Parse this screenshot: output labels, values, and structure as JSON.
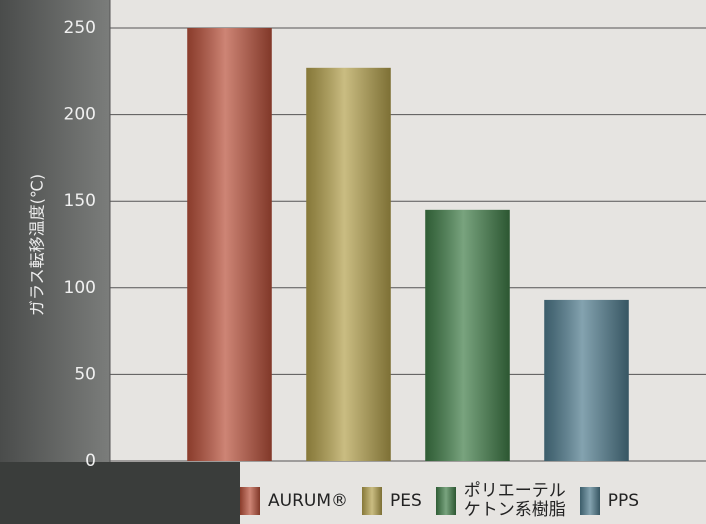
{
  "chart_data": {
    "type": "bar",
    "y_label": "ガラス転移温度(℃)",
    "categories": [
      "AURUM®",
      "PES",
      "ポリエーテル\nケトン系樹脂",
      "PPS"
    ],
    "values": [
      250,
      227,
      145,
      93
    ],
    "colors": [
      "#b8503a",
      "#b3a04c",
      "#3f7c47",
      "#4f7b8d"
    ],
    "ylim": [
      0,
      250
    ],
    "yticks": [
      0,
      50,
      100,
      150,
      200,
      250
    ],
    "grid": true
  }
}
